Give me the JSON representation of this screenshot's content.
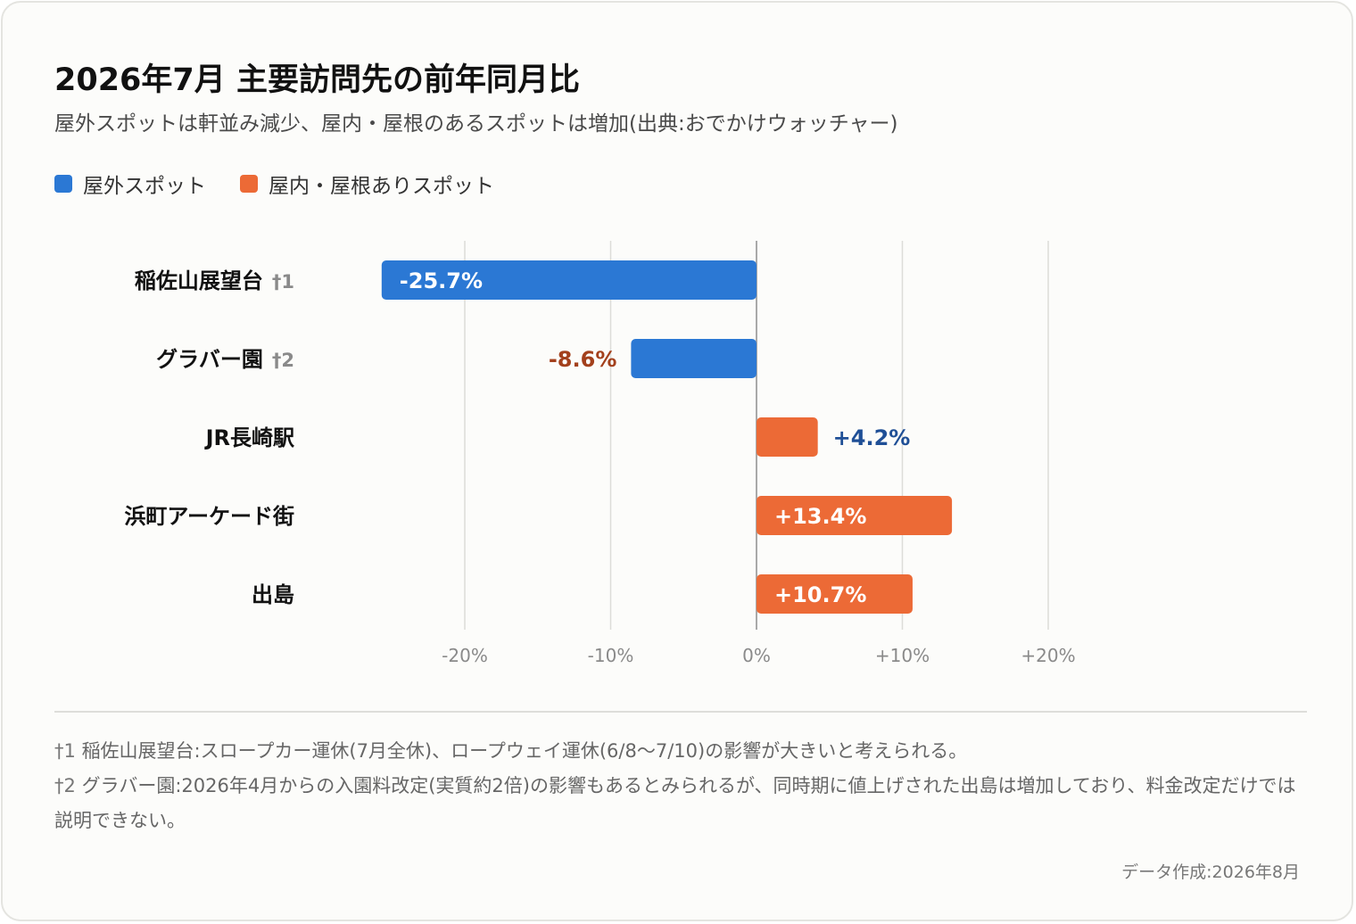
{
  "title": "2026年7月 主要訪問先の前年同月比",
  "subtitle": "屋外スポットは軒並み減少、屋内・屋根のあるスポットは増加(出典:おでかけウォッチャー)",
  "legend": [
    {
      "label": "屋外スポット",
      "color": "#2b78d4"
    },
    {
      "label": "屋内・屋根ありスポット",
      "color": "#ec6a36"
    }
  ],
  "colors": {
    "outdoor": "#2b78d4",
    "indoor": "#ec6a36",
    "negative_label": "#a3401c",
    "positive_label": "#1f4f96"
  },
  "chart_data": {
    "type": "bar",
    "orientation": "horizontal",
    "categories": [
      "稲佐山展望台",
      "グラバー園",
      "JR長崎駅",
      "浜町アーケード街",
      "出島"
    ],
    "markers": [
      "†1",
      "†2",
      "",
      "",
      ""
    ],
    "groups": [
      "outdoor",
      "outdoor",
      "indoor",
      "indoor",
      "indoor"
    ],
    "values": [
      -25.7,
      -8.6,
      4.2,
      13.4,
      10.7
    ],
    "value_labels": [
      "-25.7%",
      "-8.6%",
      "+4.2%",
      "+13.4%",
      "+10.7%"
    ],
    "xlim": [
      -20,
      20
    ],
    "xticks": [
      -20,
      -10,
      0,
      10,
      20
    ],
    "xtick_labels": [
      "-20%",
      "-10%",
      "0%",
      "+10%",
      "+20%"
    ],
    "grid": true,
    "legend_position": "top-left"
  },
  "notes": [
    {
      "mark": "†1",
      "text": "稲佐山展望台:スロープカー運休(7月全休)、ロープウェイ運休(6/8〜7/10)の影響が大きいと考えられる。"
    },
    {
      "mark": "†2",
      "text": "グラバー園:2026年4月からの入園料改定(実質約2倍)の影響もあるとみられるが、同時期に値上げされた出島は増加しており、料金改定だけでは説明できない。"
    }
  ],
  "credit": "データ作成:2026年8月"
}
